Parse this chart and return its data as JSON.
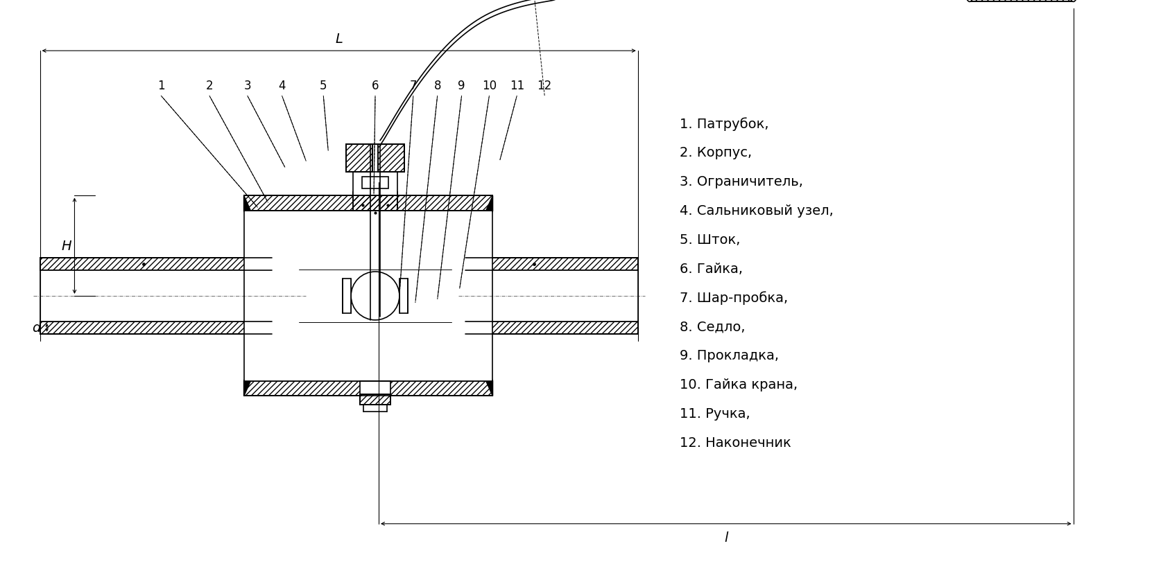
{
  "bg_color": "#ffffff",
  "line_color": "#000000",
  "hatch_color": "#000000",
  "hatch_pattern": "////",
  "legend_items": [
    "1. Патрубок,",
    "2. Корпус,",
    "3. Ограничитель,",
    "4. Сальниковый узел,",
    "5. Шток,",
    "6. Гайка,",
    "7. Шар-пробка,",
    "8. Седло,",
    "9. Прокладка,",
    "10. Гайка крана,",
    "11. Ручка,",
    "12. Наконечник"
  ],
  "dim_labels": [
    "H",
    "d",
    "L",
    "l"
  ],
  "callout_numbers": [
    "1",
    "2",
    "3",
    "4",
    "5",
    "6",
    "7",
    "8",
    "9",
    "10",
    "11",
    "12"
  ],
  "font_size_legend": 14,
  "font_size_callout": 12,
  "font_size_dim": 14
}
